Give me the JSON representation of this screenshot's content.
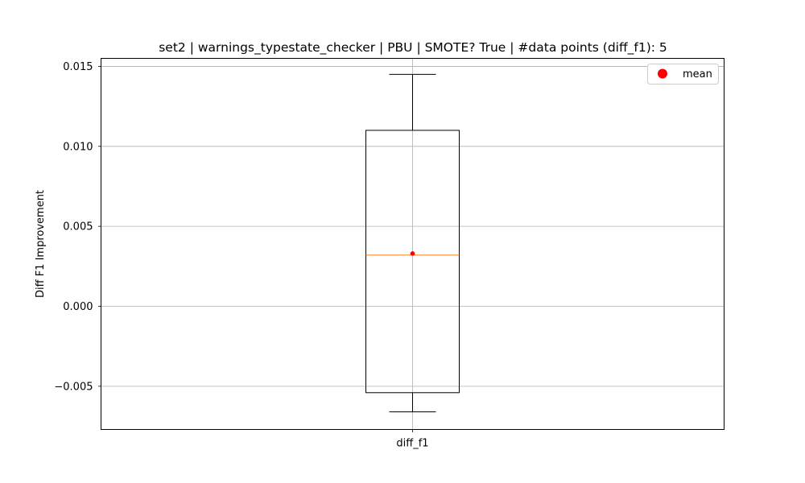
{
  "chart_data": {
    "type": "box",
    "title": "set2 | warnings_typestate_checker | PBU | SMOTE? True | #data points (diff_f1): 5",
    "xlabel": "",
    "ylabel": "Diff F1 Improvement",
    "categories": [
      "diff_f1"
    ],
    "boxes": [
      {
        "name": "diff_f1",
        "whisker_low": -0.0066,
        "q1": -0.0054,
        "median": 0.0032,
        "q3": 0.011,
        "whisker_high": 0.0145,
        "mean": 0.0033
      }
    ],
    "ylim": [
      -0.0077,
      0.0155
    ],
    "yticks": [
      -0.005,
      0.0,
      0.005,
      0.01,
      0.015
    ],
    "ytick_labels": [
      "−0.005",
      "0.000",
      "0.005",
      "0.010",
      "0.015"
    ],
    "grid": true,
    "legend": {
      "placement": "upper-right",
      "entries": [
        "mean"
      ]
    },
    "colors": {
      "box": "#000000",
      "median": "#ff7f0e",
      "mean": "#ff0000",
      "grid": "#b0b0b0"
    }
  }
}
